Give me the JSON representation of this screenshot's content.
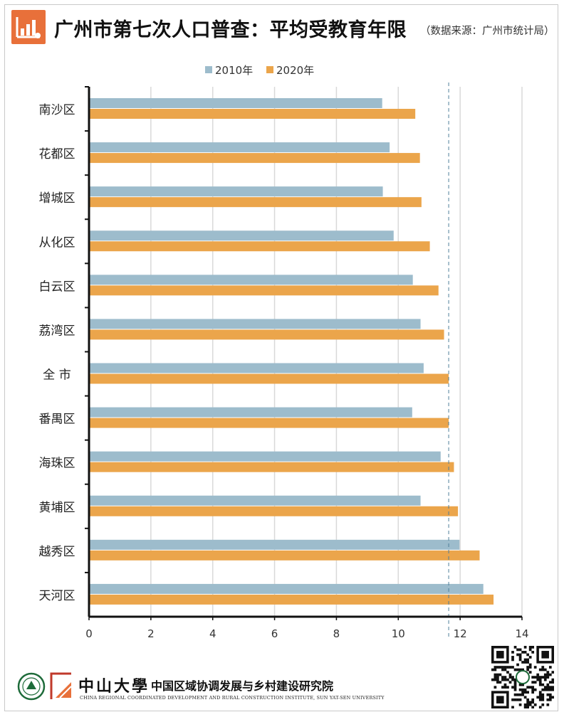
{
  "header": {
    "title": "广州市第七次人口普查：平均受教育年限",
    "source": "（数据来源：广州市统计局）",
    "icon": "bar-chart-icon",
    "accent": "#e8703a"
  },
  "chart_data": {
    "type": "bar",
    "orientation": "horizontal",
    "categories": [
      "南沙区",
      "花都区",
      "增城区",
      "从化区",
      "白云区",
      "荔湾区",
      "全  市",
      "番禺区",
      "海珠区",
      "黄埔区",
      "越秀区",
      "天河区"
    ],
    "series": [
      {
        "name": "2010年",
        "color": "#9dbccc",
        "values": [
          9.48,
          9.72,
          9.5,
          9.85,
          10.47,
          10.72,
          10.82,
          10.45,
          11.37,
          10.72,
          11.98,
          12.75
        ]
      },
      {
        "name": "2020年",
        "color": "#eba54b",
        "values": [
          10.55,
          10.7,
          10.75,
          11.02,
          11.3,
          11.48,
          11.63,
          11.63,
          11.8,
          11.93,
          12.63,
          13.08
        ]
      }
    ],
    "xlim": [
      0,
      14
    ],
    "xticks": [
      "0",
      "2",
      "4",
      "6",
      "8",
      "10",
      "12",
      "14"
    ],
    "reference_line": 11.63,
    "grid": "vertical",
    "legend": "top-center",
    "title": "广州市第七次人口普查：平均受教育年限"
  },
  "footer": {
    "university": "中山大學",
    "institute": "中国区域协调发展与乡村建设研究院",
    "institute_en": "CHINA REGIONAL COORDINATED DEVELOPMENT AND RURAL CONSTRUCTION INSTITUTE, SUN YAT-SEN UNIVERSITY",
    "seal_icon": "university-seal-icon",
    "logo_icon": "institute-logo-icon",
    "qr_icon": "qr-code-icon"
  }
}
